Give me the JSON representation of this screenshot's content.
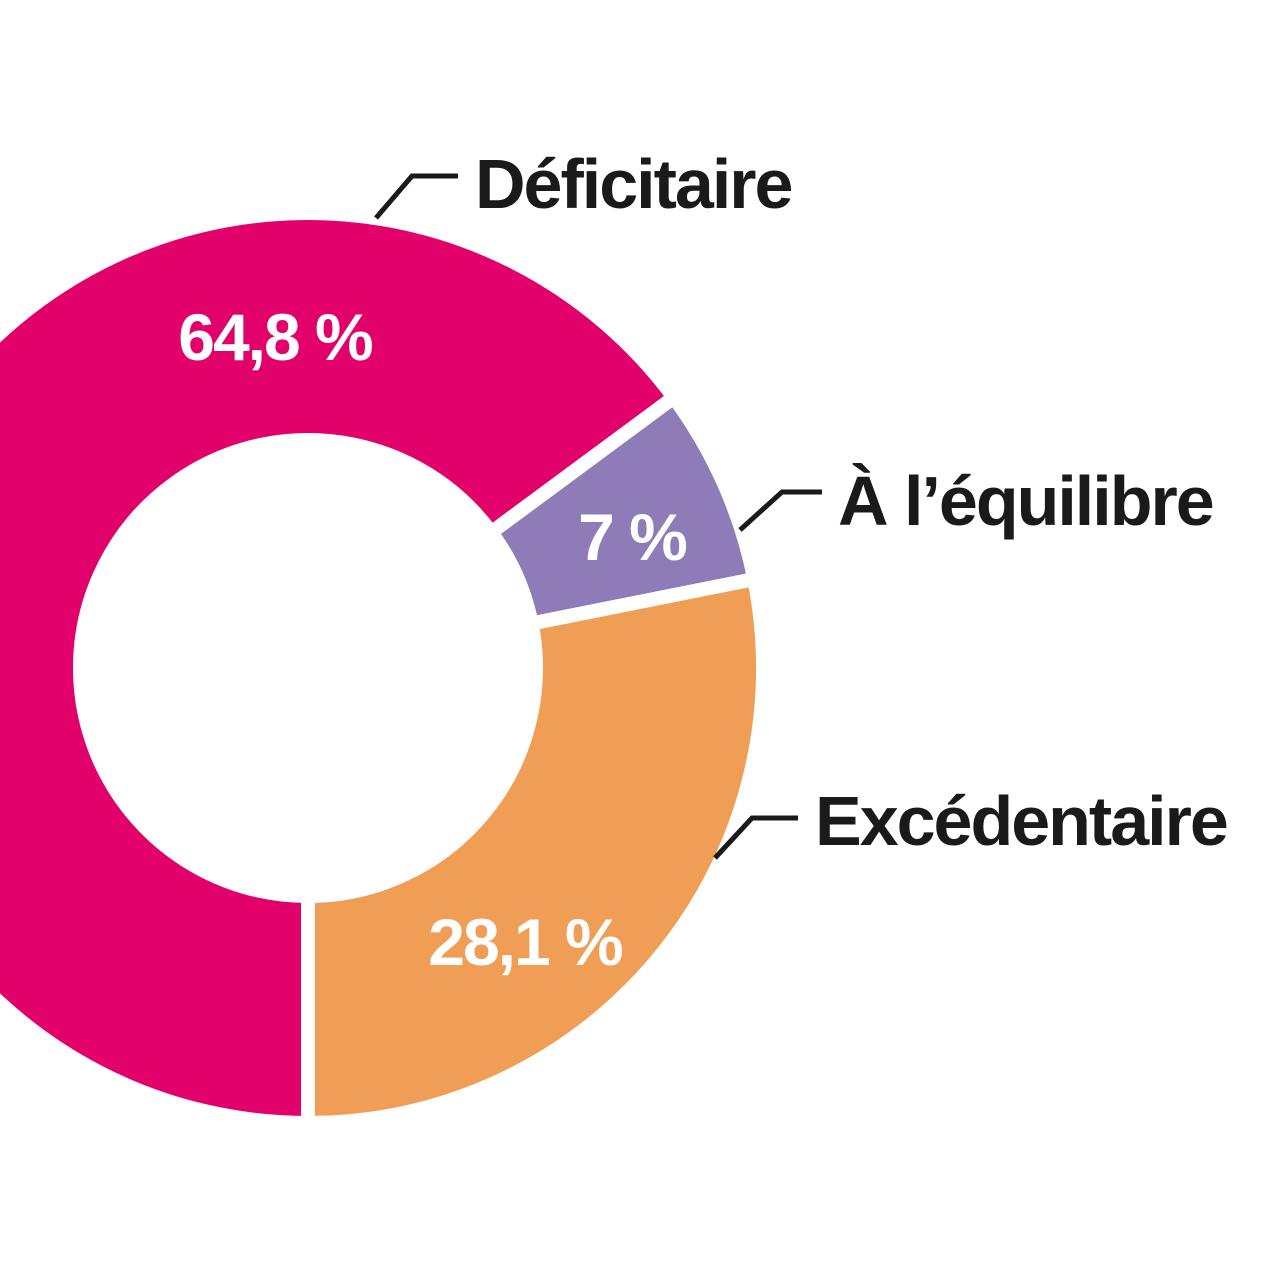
{
  "chart_data": {
    "type": "pie",
    "variant": "donut",
    "categories": [
      "Déficitaire",
      "À l’équilibre",
      "Excédentaire"
    ],
    "values": [
      64.8,
      7,
      28.1
    ],
    "value_labels": [
      "64,8 %",
      "7 %",
      "28,1 %"
    ],
    "colors": [
      "#e2006a",
      "#8d7cb8",
      "#f09e56"
    ],
    "start": "bottom, clockwise",
    "legend": "leader-line labels"
  }
}
